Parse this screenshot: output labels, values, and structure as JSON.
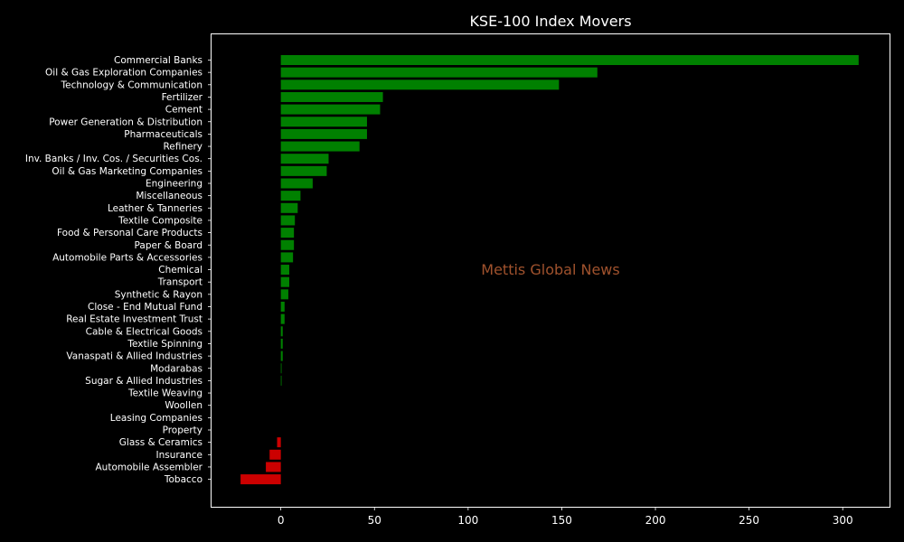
{
  "chart_data": {
    "type": "bar",
    "orientation": "horizontal",
    "title": "KSE-100 Index Movers",
    "xlabel": "",
    "ylabel": "",
    "xlim": [
      -37,
      325
    ],
    "x_ticks": [
      0,
      50,
      100,
      150,
      200,
      250,
      300
    ],
    "grid": false,
    "legend": "none",
    "watermark": "Mettis Global News",
    "colors": {
      "positive": "#008000",
      "negative": "#cc0000",
      "background": "#000000",
      "text": "#ffffff",
      "watermark": "#a0522d"
    },
    "categories": [
      "Commercial Banks",
      "Oil & Gas Exploration Companies",
      "Technology & Communication",
      "Fertilizer",
      "Cement",
      "Power Generation & Distribution",
      "Pharmaceuticals",
      "Refinery",
      "Inv. Banks / Inv. Cos. / Securities Cos.",
      "Oil & Gas Marketing Companies",
      "Engineering",
      "Miscellaneous",
      "Leather & Tanneries",
      "Textile Composite",
      "Food & Personal Care Products",
      "Paper & Board",
      "Automobile Parts & Accessories",
      "Chemical",
      "Transport",
      "Synthetic & Rayon",
      "Close - End Mutual Fund",
      "Real Estate Investment Trust",
      "Cable & Electrical Goods",
      "Textile Spinning",
      "Vanaspati & Allied Industries",
      "Modarabas",
      "Sugar & Allied Industries",
      "Textile Weaving",
      "Woollen",
      "Leasing Companies",
      "Property",
      "Glass & Ceramics",
      "Insurance",
      "Automobile Assembler",
      "Tobacco"
    ],
    "values": [
      308.5,
      169.0,
      148.5,
      54.5,
      53.0,
      46.0,
      46.0,
      42.0,
      25.5,
      24.5,
      17.0,
      10.5,
      9.0,
      7.5,
      7.0,
      7.0,
      6.5,
      4.5,
      4.5,
      4.0,
      2.0,
      2.0,
      1.0,
      1.0,
      1.0,
      0.3,
      0.3,
      0.0,
      0.0,
      0.0,
      0.0,
      -2.0,
      -6.0,
      -8.0,
      -21.5
    ]
  }
}
